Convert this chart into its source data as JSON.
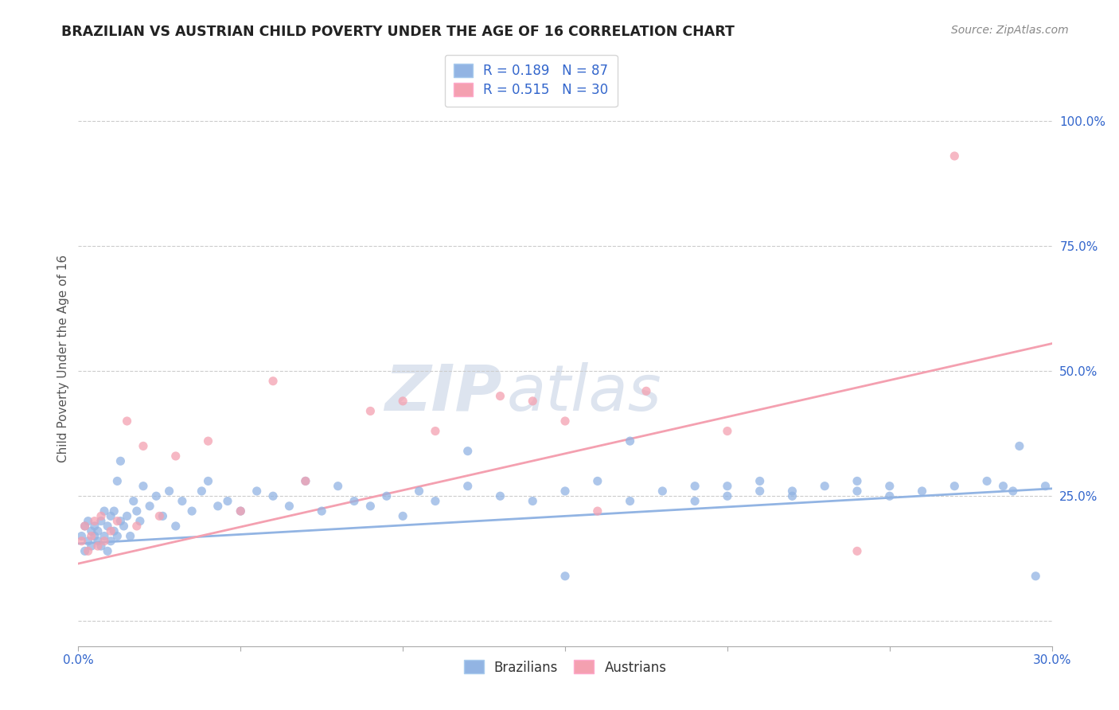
{
  "title": "BRAZILIAN VS AUSTRIAN CHILD POVERTY UNDER THE AGE OF 16 CORRELATION CHART",
  "source": "Source: ZipAtlas.com",
  "ylabel": "Child Poverty Under the Age of 16",
  "xlim": [
    0.0,
    0.3
  ],
  "ylim": [
    -0.05,
    1.1
  ],
  "xticks": [
    0.0,
    0.05,
    0.1,
    0.15,
    0.2,
    0.25,
    0.3
  ],
  "yticks_right": [
    0.0,
    0.25,
    0.5,
    0.75,
    1.0
  ],
  "yticklabels_right": [
    "",
    "25.0%",
    "50.0%",
    "75.0%",
    "100.0%"
  ],
  "brazil_color": "#92b4e3",
  "austria_color": "#f4a0b0",
  "brazil_r": 0.189,
  "brazil_n": 87,
  "austria_r": 0.515,
  "austria_n": 30,
  "brazil_scatter_x": [
    0.001,
    0.002,
    0.002,
    0.003,
    0.003,
    0.004,
    0.004,
    0.005,
    0.005,
    0.006,
    0.006,
    0.007,
    0.007,
    0.008,
    0.008,
    0.009,
    0.009,
    0.01,
    0.01,
    0.011,
    0.011,
    0.012,
    0.012,
    0.013,
    0.013,
    0.014,
    0.015,
    0.016,
    0.017,
    0.018,
    0.019,
    0.02,
    0.022,
    0.024,
    0.026,
    0.028,
    0.03,
    0.032,
    0.035,
    0.038,
    0.04,
    0.043,
    0.046,
    0.05,
    0.055,
    0.06,
    0.065,
    0.07,
    0.075,
    0.08,
    0.085,
    0.09,
    0.095,
    0.1,
    0.105,
    0.11,
    0.12,
    0.13,
    0.14,
    0.15,
    0.16,
    0.17,
    0.18,
    0.19,
    0.2,
    0.21,
    0.22,
    0.23,
    0.24,
    0.25,
    0.12,
    0.15,
    0.17,
    0.19,
    0.2,
    0.21,
    0.22,
    0.24,
    0.25,
    0.26,
    0.27,
    0.28,
    0.285,
    0.288,
    0.29,
    0.295,
    0.298
  ],
  "brazil_scatter_y": [
    0.17,
    0.19,
    0.14,
    0.16,
    0.2,
    0.18,
    0.15,
    0.17,
    0.19,
    0.16,
    0.18,
    0.2,
    0.15,
    0.22,
    0.17,
    0.19,
    0.14,
    0.16,
    0.21,
    0.18,
    0.22,
    0.17,
    0.28,
    0.2,
    0.32,
    0.19,
    0.21,
    0.17,
    0.24,
    0.22,
    0.2,
    0.27,
    0.23,
    0.25,
    0.21,
    0.26,
    0.19,
    0.24,
    0.22,
    0.26,
    0.28,
    0.23,
    0.24,
    0.22,
    0.26,
    0.25,
    0.23,
    0.28,
    0.22,
    0.27,
    0.24,
    0.23,
    0.25,
    0.21,
    0.26,
    0.24,
    0.27,
    0.25,
    0.24,
    0.26,
    0.28,
    0.24,
    0.26,
    0.27,
    0.25,
    0.28,
    0.26,
    0.27,
    0.26,
    0.25,
    0.34,
    0.09,
    0.36,
    0.24,
    0.27,
    0.26,
    0.25,
    0.28,
    0.27,
    0.26,
    0.27,
    0.28,
    0.27,
    0.26,
    0.35,
    0.09,
    0.27
  ],
  "austria_scatter_x": [
    0.001,
    0.002,
    0.003,
    0.004,
    0.005,
    0.006,
    0.007,
    0.008,
    0.01,
    0.012,
    0.015,
    0.018,
    0.02,
    0.025,
    0.03,
    0.04,
    0.05,
    0.06,
    0.07,
    0.09,
    0.1,
    0.11,
    0.13,
    0.14,
    0.15,
    0.16,
    0.175,
    0.2,
    0.24,
    0.27
  ],
  "austria_scatter_y": [
    0.16,
    0.19,
    0.14,
    0.17,
    0.2,
    0.15,
    0.21,
    0.16,
    0.18,
    0.2,
    0.4,
    0.19,
    0.35,
    0.21,
    0.33,
    0.36,
    0.22,
    0.48,
    0.28,
    0.42,
    0.44,
    0.38,
    0.45,
    0.44,
    0.4,
    0.22,
    0.46,
    0.38,
    0.14,
    0.93
  ],
  "brazil_line_x": [
    0.0,
    0.3
  ],
  "brazil_line_y": [
    0.155,
    0.265
  ],
  "austria_line_x": [
    0.0,
    0.3
  ],
  "austria_line_y": [
    0.115,
    0.555
  ],
  "background_color": "#ffffff",
  "grid_color": "#cccccc",
  "title_color": "#222222",
  "axis_label_color": "#555555",
  "tick_color": "#3366cc",
  "watermark_color": "#dde4ef",
  "legend_r_color": "#3366cc"
}
